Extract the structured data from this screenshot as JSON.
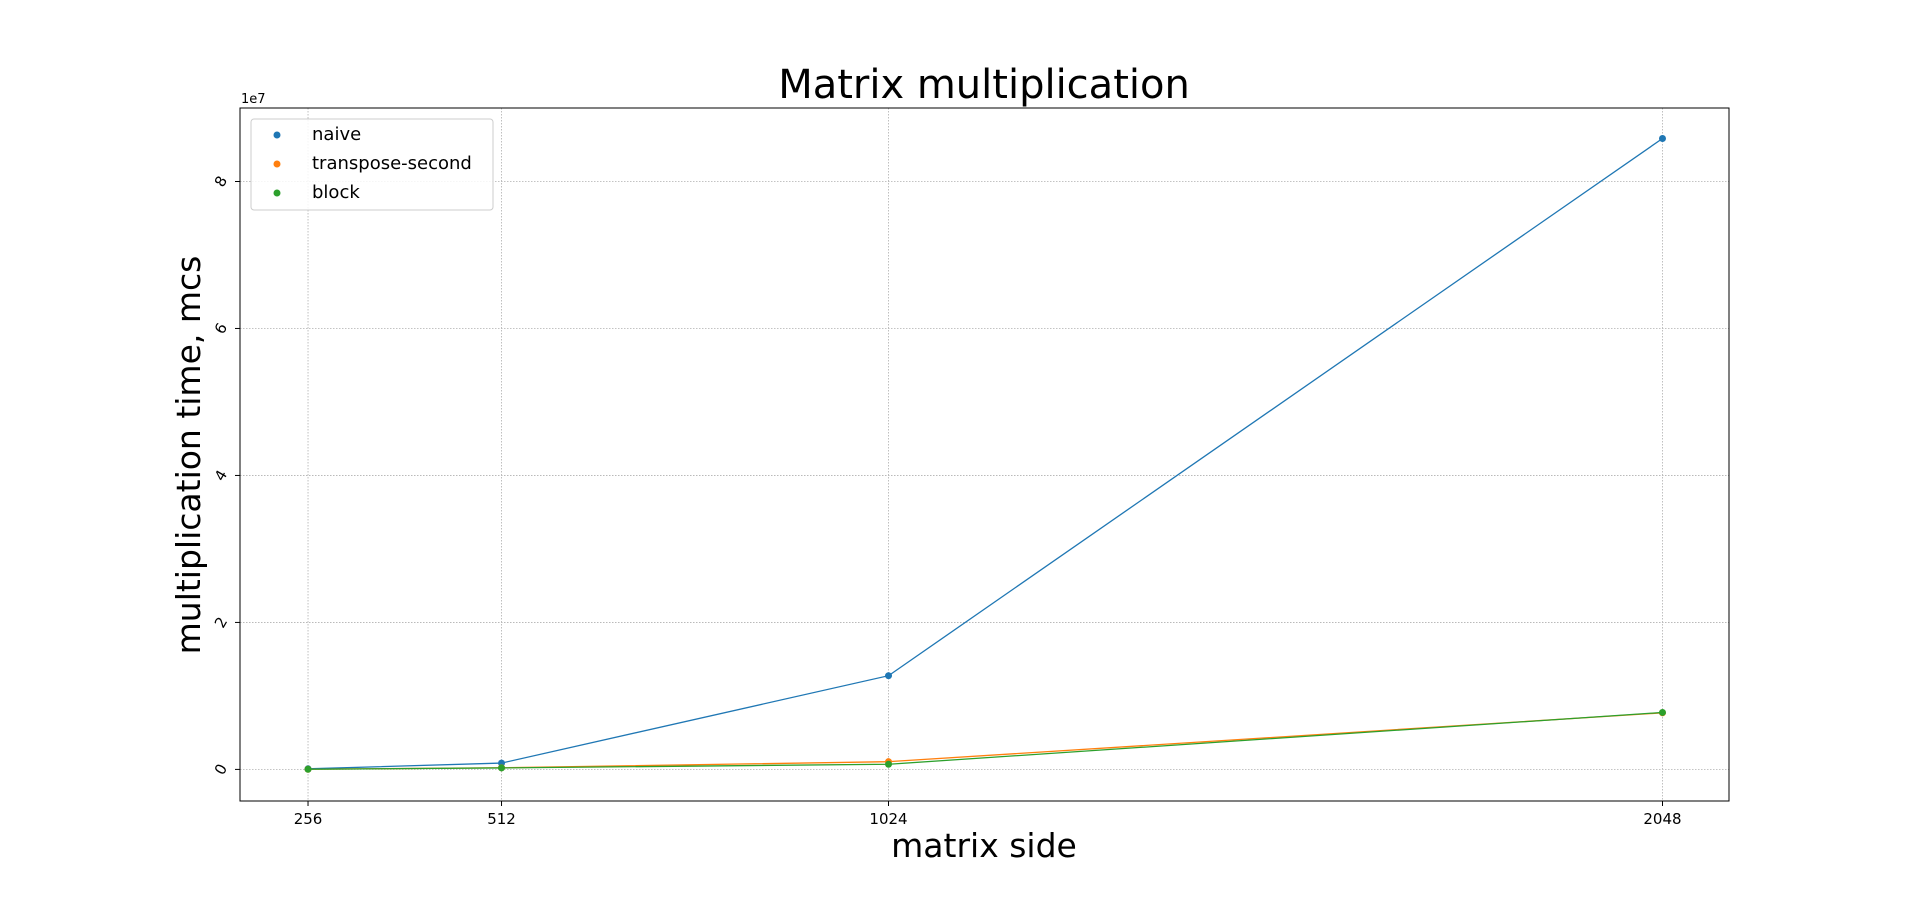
{
  "chart_data": {
    "type": "line",
    "title": "Matrix multiplication",
    "xlabel": "matrix side",
    "ylabel": "multiplication time, mcs",
    "y_scale_label": "1e7",
    "x": [
      256,
      512,
      1024,
      2048
    ],
    "x_tick_labels": [
      "256",
      "512",
      "1024",
      "2048"
    ],
    "y_ticks": [
      0,
      2,
      4,
      6,
      8
    ],
    "y_tick_labels": [
      "0",
      "2",
      "4",
      "6",
      "8"
    ],
    "y_multiplier": 10000000,
    "xlim": [
      166,
      2136
    ],
    "ylim": [
      -4300000,
      90000000
    ],
    "grid": true,
    "legend_position": "upper-left",
    "series": [
      {
        "name": "naive",
        "color": "#1f77b4",
        "values": [
          80000,
          860000,
          12750000,
          85850000
        ]
      },
      {
        "name": "transpose-second",
        "color": "#ff7f0e",
        "values": [
          20000,
          220000,
          1050000,
          7700000
        ]
      },
      {
        "name": "block",
        "color": "#2ca02c",
        "values": [
          20000,
          200000,
          700000,
          7750000
        ]
      }
    ]
  }
}
